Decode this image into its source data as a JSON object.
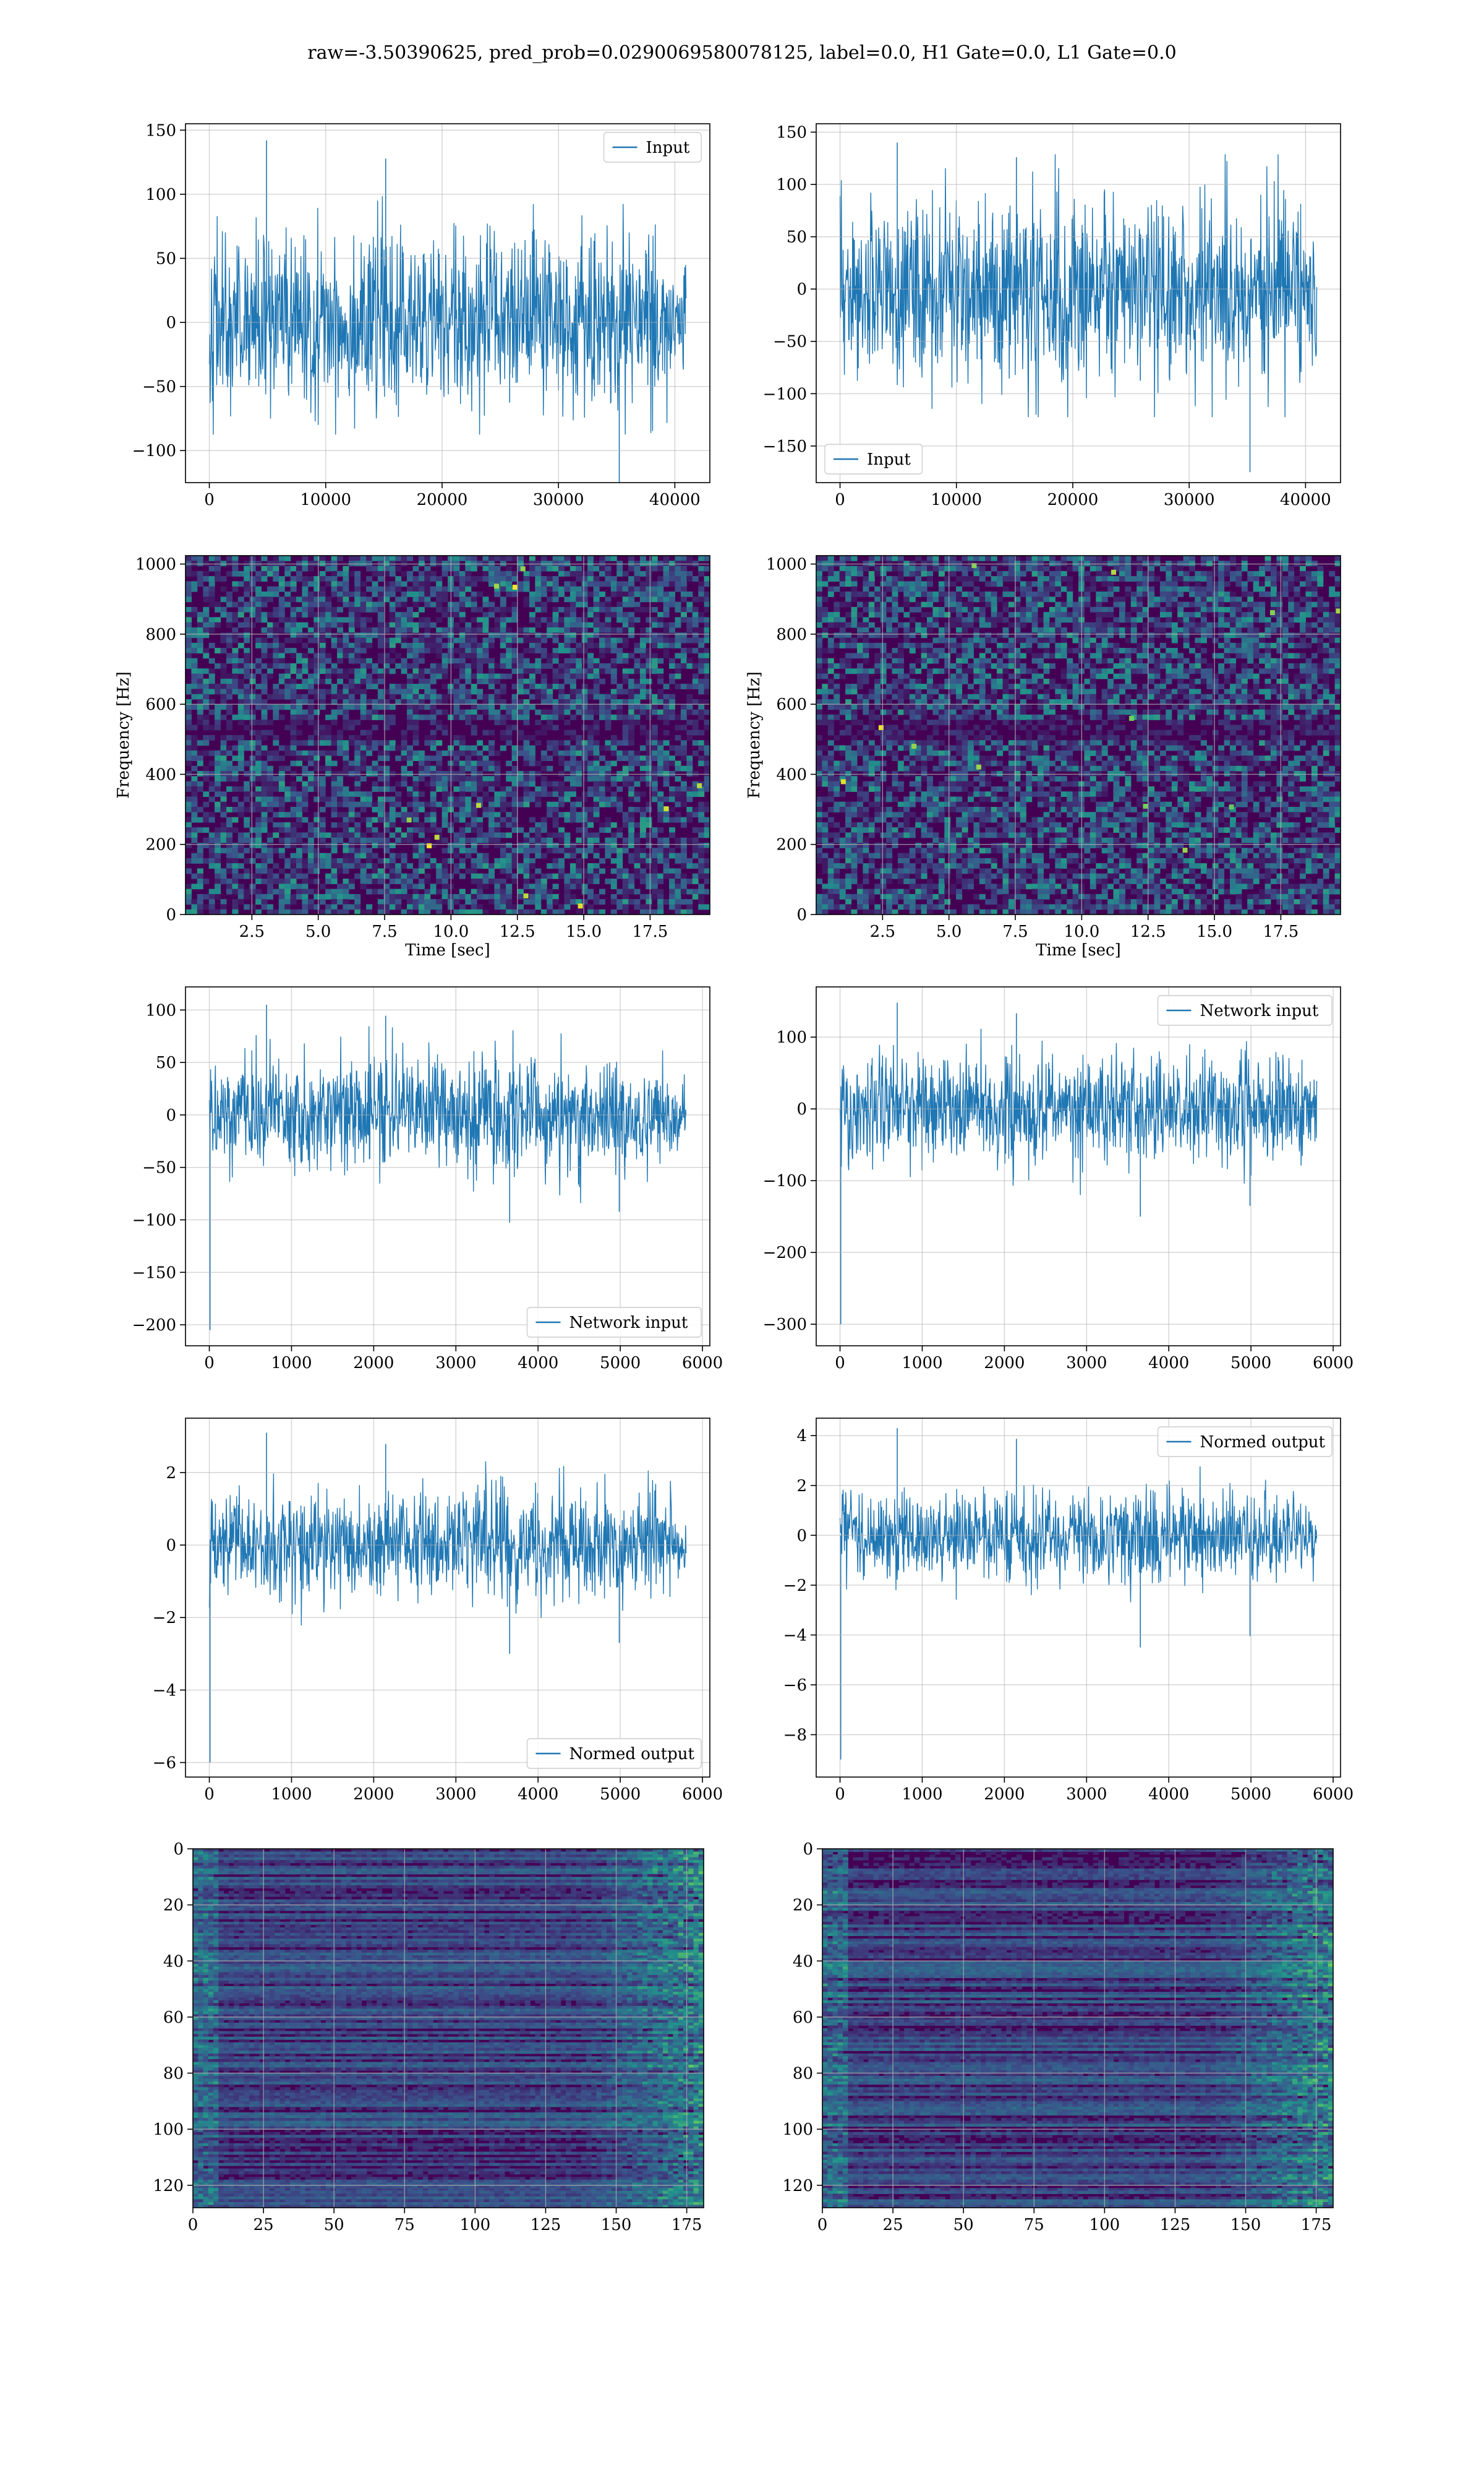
{
  "suptitle": "raw=-3.50390625, pred_prob=0.0290069580078125, label=0.0, H1 Gate=0.0, L1 Gate=0.0",
  "colors": {
    "line": "#1f77b4",
    "grid": "#b0b0b0",
    "viridis_low": "#440154",
    "viridis_mid": "#21918c",
    "viridis_high": "#fde725"
  },
  "chart_data": [
    {
      "id": "h1-input",
      "type": "line",
      "grid": true,
      "legend_loc": "upper right",
      "series": [
        {
          "name": "Input",
          "noise_amplitude": 55,
          "peak_high": 142,
          "peak_low": -125
        }
      ],
      "x_range": [
        0,
        40960
      ],
      "xlim": [
        -2048,
        43008
      ],
      "ylim": [
        -125,
        155
      ],
      "xticks": [
        0,
        10000,
        20000,
        30000,
        40000
      ],
      "xtick_labels": [
        "0",
        "10000",
        "20000",
        "30000",
        "40000"
      ],
      "yticks": [
        -100,
        -50,
        0,
        50,
        100,
        150
      ],
      "ytick_labels": [
        "−100",
        "−50",
        "0",
        "50",
        "100",
        "150"
      ],
      "xlabel": "",
      "ylabel": ""
    },
    {
      "id": "l1-input",
      "type": "line",
      "grid": true,
      "legend_loc": "lower left",
      "series": [
        {
          "name": "Input",
          "noise_amplitude": 75,
          "peak_high": 140,
          "peak_low": -175
        }
      ],
      "x_range": [
        0,
        40960
      ],
      "xlim": [
        -2048,
        43008
      ],
      "ylim": [
        -185,
        158
      ],
      "xticks": [
        0,
        10000,
        20000,
        30000,
        40000
      ],
      "xtick_labels": [
        "0",
        "10000",
        "20000",
        "30000",
        "40000"
      ],
      "yticks": [
        -150,
        -100,
        -50,
        0,
        50,
        100,
        150
      ],
      "ytick_labels": [
        "−150",
        "−100",
        "−50",
        "0",
        "50",
        "100",
        "150"
      ],
      "xlabel": "",
      "ylabel": ""
    },
    {
      "id": "h1-spectrogram",
      "type": "heatmap",
      "grid": true,
      "colormap": "viridis",
      "xlim": [
        0,
        19.75
      ],
      "ylim": [
        0,
        1024
      ],
      "xticks": [
        2.5,
        5.0,
        7.5,
        10.0,
        12.5,
        15.0,
        17.5
      ],
      "xtick_labels": [
        "2.5",
        "5.0",
        "7.5",
        "10.0",
        "12.5",
        "15.0",
        "17.5"
      ],
      "yticks": [
        0,
        200,
        400,
        600,
        800,
        1000
      ],
      "ytick_labels": [
        "0",
        "200",
        "400",
        "600",
        "800",
        "1000"
      ],
      "xlabel": "Time [sec]",
      "ylabel": "Frequency [Hz]"
    },
    {
      "id": "l1-spectrogram",
      "type": "heatmap",
      "grid": true,
      "colormap": "viridis",
      "xlim": [
        0,
        19.75
      ],
      "ylim": [
        0,
        1024
      ],
      "xticks": [
        2.5,
        5.0,
        7.5,
        10.0,
        12.5,
        15.0,
        17.5
      ],
      "xtick_labels": [
        "2.5",
        "5.0",
        "7.5",
        "10.0",
        "12.5",
        "15.0",
        "17.5"
      ],
      "yticks": [
        0,
        200,
        400,
        600,
        800,
        1000
      ],
      "ytick_labels": [
        "0",
        "200",
        "400",
        "600",
        "800",
        "1000"
      ],
      "xlabel": "Time [sec]",
      "ylabel": "Frequency [Hz]"
    },
    {
      "id": "h1-network-input",
      "type": "line",
      "grid": true,
      "legend_loc": "lower right",
      "series": [
        {
          "name": "Network input",
          "noise_amplitude": 42,
          "peak_high": 105,
          "peak_low": -205
        }
      ],
      "x_range": [
        0,
        5800
      ],
      "xlim": [
        -290,
        6090
      ],
      "ylim": [
        -220,
        122
      ],
      "xticks": [
        0,
        1000,
        2000,
        3000,
        4000,
        5000,
        6000
      ],
      "xtick_labels": [
        "0",
        "1000",
        "2000",
        "3000",
        "4000",
        "5000",
        "6000"
      ],
      "yticks": [
        -200,
        -150,
        -100,
        -50,
        0,
        50,
        100
      ],
      "ytick_labels": [
        "−200",
        "−150",
        "−100",
        "−50",
        "0",
        "50",
        "100"
      ],
      "xlabel": "",
      "ylabel": ""
    },
    {
      "id": "l1-network-input",
      "type": "line",
      "grid": true,
      "legend_loc": "upper right",
      "series": [
        {
          "name": "Network input",
          "noise_amplitude": 60,
          "peak_high": 148,
          "peak_low": -300
        }
      ],
      "x_range": [
        0,
        5800
      ],
      "xlim": [
        -290,
        6090
      ],
      "ylim": [
        -330,
        170
      ],
      "xticks": [
        0,
        1000,
        2000,
        3000,
        4000,
        5000,
        6000
      ],
      "xtick_labels": [
        "0",
        "1000",
        "2000",
        "3000",
        "4000",
        "5000",
        "6000"
      ],
      "yticks": [
        -300,
        -200,
        -100,
        0,
        100
      ],
      "ytick_labels": [
        "−300",
        "−200",
        "−100",
        "0",
        "100"
      ],
      "xlabel": "",
      "ylabel": ""
    },
    {
      "id": "h1-normed-output",
      "type": "line",
      "grid": true,
      "legend_loc": "lower right",
      "series": [
        {
          "name": "Normed output",
          "noise_amplitude": 1.15,
          "peak_high": 3.1,
          "peak_low": -6.0
        }
      ],
      "x_range": [
        0,
        5800
      ],
      "xlim": [
        -290,
        6090
      ],
      "ylim": [
        -6.4,
        3.5
      ],
      "xticks": [
        0,
        1000,
        2000,
        3000,
        4000,
        5000,
        6000
      ],
      "xtick_labels": [
        "0",
        "1000",
        "2000",
        "3000",
        "4000",
        "5000",
        "6000"
      ],
      "yticks": [
        -6,
        -4,
        -2,
        0,
        2
      ],
      "ytick_labels": [
        "−6",
        "−4",
        "−2",
        "0",
        "2"
      ],
      "xlabel": "",
      "ylabel": ""
    },
    {
      "id": "l1-normed-output",
      "type": "line",
      "grid": true,
      "legend_loc": "upper right",
      "series": [
        {
          "name": "Normed output",
          "noise_amplitude": 1.5,
          "peak_high": 4.3,
          "peak_low": -9.0
        }
      ],
      "x_range": [
        0,
        5800
      ],
      "xlim": [
        -290,
        6090
      ],
      "ylim": [
        -9.7,
        4.7
      ],
      "xticks": [
        0,
        1000,
        2000,
        3000,
        4000,
        5000,
        6000
      ],
      "xtick_labels": [
        "0",
        "1000",
        "2000",
        "3000",
        "4000",
        "5000",
        "6000"
      ],
      "yticks": [
        -8,
        -6,
        -4,
        -2,
        0,
        2,
        4
      ],
      "ytick_labels": [
        "−8",
        "−6",
        "−4",
        "−2",
        "0",
        "2",
        "4"
      ],
      "xlabel": "",
      "ylabel": ""
    },
    {
      "id": "h1-feature-map",
      "type": "heatmap",
      "grid": true,
      "colormap": "viridis",
      "y_inverted": true,
      "xlim": [
        0,
        181
      ],
      "ylim": [
        128,
        0
      ],
      "xticks": [
        0,
        25,
        50,
        75,
        100,
        125,
        150,
        175
      ],
      "xtick_labels": [
        "0",
        "25",
        "50",
        "75",
        "100",
        "125",
        "150",
        "175"
      ],
      "yticks": [
        0,
        20,
        40,
        60,
        80,
        100,
        120
      ],
      "ytick_labels": [
        "0",
        "20",
        "40",
        "60",
        "80",
        "100",
        "120"
      ],
      "xlabel": "",
      "ylabel": ""
    },
    {
      "id": "l1-feature-map",
      "type": "heatmap",
      "grid": true,
      "colormap": "viridis",
      "y_inverted": true,
      "xlim": [
        0,
        181
      ],
      "ylim": [
        128,
        0
      ],
      "xticks": [
        0,
        25,
        50,
        75,
        100,
        125,
        150,
        175
      ],
      "xtick_labels": [
        "0",
        "25",
        "50",
        "75",
        "100",
        "125",
        "150",
        "175"
      ],
      "yticks": [
        0,
        20,
        40,
        60,
        80,
        100,
        120
      ],
      "ytick_labels": [
        "0",
        "20",
        "40",
        "60",
        "80",
        "100",
        "120"
      ],
      "xlabel": "",
      "ylabel": ""
    }
  ]
}
